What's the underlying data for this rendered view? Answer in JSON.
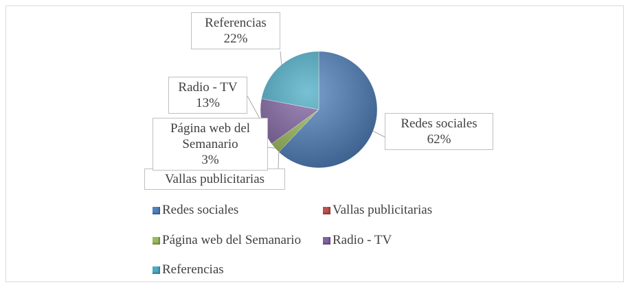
{
  "chart_data": {
    "type": "pie",
    "categories": [
      "Redes sociales",
      "Vallas publicitarias",
      "Página web del Semanario",
      "Radio - TV",
      "Referencias"
    ],
    "values": [
      62,
      0,
      3,
      13,
      22
    ],
    "value_labels": [
      "62%",
      null,
      "3%",
      "13%",
      "22%"
    ],
    "colors": [
      "#4f81bd",
      "#c0504d",
      "#9bbb59",
      "#8064a2",
      "#4bacc6"
    ],
    "legend": "bottom"
  }
}
